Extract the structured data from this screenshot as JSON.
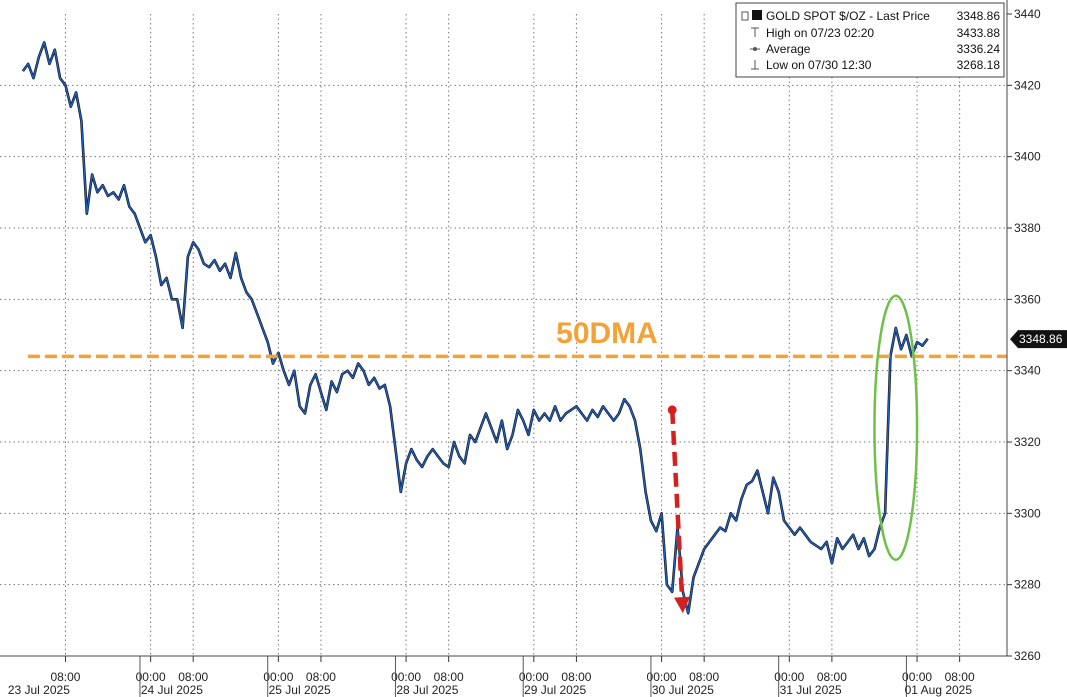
{
  "chart_data": {
    "type": "line",
    "title": "",
    "xlabel": "",
    "ylabel": "",
    "ylim": [
      3260,
      3440
    ],
    "y_ticks": [
      3260,
      3280,
      3300,
      3320,
      3340,
      3360,
      3380,
      3400,
      3420,
      3440
    ],
    "x_time_labels": [
      {
        "t": 8,
        "label": "08:00"
      },
      {
        "t": 24,
        "label": "00:00"
      },
      {
        "t": 32,
        "label": "08:00"
      },
      {
        "t": 48,
        "label": "00:00"
      },
      {
        "t": 56,
        "label": "08:00"
      },
      {
        "t": 72,
        "label": "00:00"
      },
      {
        "t": 80,
        "label": "08:00"
      },
      {
        "t": 96,
        "label": "00:00"
      },
      {
        "t": 104,
        "label": "08:00"
      },
      {
        "t": 120,
        "label": "00:00"
      },
      {
        "t": 128,
        "label": "08:00"
      },
      {
        "t": 144,
        "label": "00:00"
      },
      {
        "t": 152,
        "label": "08:00"
      },
      {
        "t": 168,
        "label": "00:00"
      },
      {
        "t": 176,
        "label": "08:00"
      }
    ],
    "x_date_labels": [
      {
        "t": 3,
        "label": "23 Jul 2025"
      },
      {
        "t": 28,
        "label": "24 Jul 2025"
      },
      {
        "t": 52,
        "label": "25 Jul 2025"
      },
      {
        "t": 76,
        "label": "28 Jul 2025"
      },
      {
        "t": 100,
        "label": "29 Jul 2025"
      },
      {
        "t": 124,
        "label": "30 Jul 2025"
      },
      {
        "t": 148,
        "label": "31 Jul 2025"
      },
      {
        "t": 172,
        "label": "01 Aug 2025"
      }
    ],
    "series": [
      {
        "name": "GOLD SPOT $/OZ - Last Price",
        "color": "#1f5fbf",
        "points": [
          [
            0,
            3424
          ],
          [
            1,
            3426
          ],
          [
            2,
            3422
          ],
          [
            3,
            3428
          ],
          [
            4,
            3432
          ],
          [
            5,
            3426
          ],
          [
            6,
            3430
          ],
          [
            7,
            3422
          ],
          [
            8,
            3420
          ],
          [
            9,
            3414
          ],
          [
            10,
            3418
          ],
          [
            11,
            3410
          ],
          [
            12,
            3384
          ],
          [
            13,
            3395
          ],
          [
            14,
            3390
          ],
          [
            15,
            3392
          ],
          [
            16,
            3389
          ],
          [
            17,
            3390
          ],
          [
            18,
            3388
          ],
          [
            19,
            3392
          ],
          [
            20,
            3386
          ],
          [
            21,
            3384
          ],
          [
            22,
            3380
          ],
          [
            23,
            3376
          ],
          [
            24,
            3378
          ],
          [
            25,
            3372
          ],
          [
            26,
            3364
          ],
          [
            27,
            3366
          ],
          [
            28,
            3360
          ],
          [
            29,
            3360
          ],
          [
            30,
            3352
          ],
          [
            31,
            3372
          ],
          [
            32,
            3376
          ],
          [
            33,
            3374
          ],
          [
            34,
            3370
          ],
          [
            35,
            3369
          ],
          [
            36,
            3371
          ],
          [
            37,
            3368
          ],
          [
            38,
            3370
          ],
          [
            39,
            3366
          ],
          [
            40,
            3373
          ],
          [
            41,
            3366
          ],
          [
            42,
            3362
          ],
          [
            43,
            3360
          ],
          [
            44,
            3356
          ],
          [
            45,
            3352
          ],
          [
            46,
            3348
          ],
          [
            47,
            3342
          ],
          [
            48,
            3345
          ],
          [
            49,
            3340
          ],
          [
            50,
            3336
          ],
          [
            51,
            3340
          ],
          [
            52,
            3330
          ],
          [
            53,
            3328
          ],
          [
            54,
            3336
          ],
          [
            55,
            3339
          ],
          [
            56,
            3334
          ],
          [
            57,
            3329
          ],
          [
            58,
            3337
          ],
          [
            59,
            3334
          ],
          [
            60,
            3339
          ],
          [
            61,
            3340
          ],
          [
            62,
            3338
          ],
          [
            63,
            3342
          ],
          [
            64,
            3340
          ],
          [
            65,
            3336
          ],
          [
            66,
            3338
          ],
          [
            67,
            3335
          ],
          [
            68,
            3336
          ],
          [
            69,
            3330
          ],
          [
            70,
            3318
          ],
          [
            71,
            3306
          ],
          [
            72,
            3314
          ],
          [
            73,
            3318
          ],
          [
            74,
            3315
          ],
          [
            75,
            3313
          ],
          [
            76,
            3316
          ],
          [
            77,
            3318
          ],
          [
            78,
            3316
          ],
          [
            79,
            3314
          ],
          [
            80,
            3313
          ],
          [
            81,
            3320
          ],
          [
            82,
            3316
          ],
          [
            83,
            3314
          ],
          [
            84,
            3322
          ],
          [
            85,
            3320
          ],
          [
            86,
            3324
          ],
          [
            87,
            3328
          ],
          [
            88,
            3324
          ],
          [
            89,
            3320
          ],
          [
            90,
            3326
          ],
          [
            91,
            3318
          ],
          [
            92,
            3322
          ],
          [
            93,
            3329
          ],
          [
            94,
            3326
          ],
          [
            95,
            3322
          ],
          [
            96,
            3329
          ],
          [
            97,
            3326
          ],
          [
            98,
            3328
          ],
          [
            99,
            3326
          ],
          [
            100,
            3330
          ],
          [
            101,
            3326
          ],
          [
            102,
            3328
          ],
          [
            103,
            3329
          ],
          [
            104,
            3330
          ],
          [
            105,
            3328
          ],
          [
            106,
            3326
          ],
          [
            107,
            3329
          ],
          [
            108,
            3327
          ],
          [
            109,
            3330
          ],
          [
            110,
            3328
          ],
          [
            111,
            3326
          ],
          [
            112,
            3328
          ],
          [
            113,
            3332
          ],
          [
            114,
            3330
          ],
          [
            115,
            3326
          ],
          [
            116,
            3318
          ],
          [
            117,
            3306
          ],
          [
            118,
            3298
          ],
          [
            119,
            3295
          ],
          [
            120,
            3300
          ],
          [
            121,
            3280
          ],
          [
            122,
            3278
          ],
          [
            123,
            3296
          ],
          [
            124,
            3278
          ],
          [
            125,
            3272
          ],
          [
            126,
            3282
          ],
          [
            127,
            3286
          ],
          [
            128,
            3290
          ],
          [
            129,
            3292
          ],
          [
            130,
            3294
          ],
          [
            131,
            3296
          ],
          [
            132,
            3295
          ],
          [
            133,
            3300
          ],
          [
            134,
            3298
          ],
          [
            135,
            3304
          ],
          [
            136,
            3308
          ],
          [
            137,
            3309
          ],
          [
            138,
            3312
          ],
          [
            139,
            3306
          ],
          [
            140,
            3300
          ],
          [
            141,
            3310
          ],
          [
            142,
            3306
          ],
          [
            143,
            3298
          ],
          [
            144,
            3296
          ],
          [
            145,
            3294
          ],
          [
            146,
            3296
          ],
          [
            147,
            3294
          ],
          [
            148,
            3292
          ],
          [
            149,
            3291
          ],
          [
            150,
            3290
          ],
          [
            151,
            3292
          ],
          [
            152,
            3286
          ],
          [
            153,
            3293
          ],
          [
            154,
            3290
          ],
          [
            155,
            3292
          ],
          [
            156,
            3294
          ],
          [
            157,
            3290
          ],
          [
            158,
            3293
          ],
          [
            159,
            3288
          ],
          [
            160,
            3290
          ],
          [
            161,
            3296
          ],
          [
            162,
            3300
          ],
          [
            163,
            3344
          ],
          [
            164,
            3352
          ],
          [
            165,
            3346
          ],
          [
            166,
            3350
          ],
          [
            167,
            3344
          ],
          [
            168,
            3348
          ],
          [
            169,
            3347
          ],
          [
            170,
            3349
          ]
        ]
      }
    ],
    "legend": {
      "placement": "top-right",
      "rows": [
        {
          "label": "GOLD SPOT $/OZ - Last Price",
          "value": "3348.86"
        },
        {
          "label": "High on 07/23 02:20",
          "value": "3433.88"
        },
        {
          "label": "Average",
          "value": "3336.24"
        },
        {
          "label": "Low on 07/30 12:30",
          "value": "3268.18"
        }
      ]
    },
    "last_price_label": "3348.86",
    "last_price": 3348.86,
    "annotations": [
      {
        "type": "hline",
        "label": "50DMA",
        "y": 3344,
        "color": "#f4a235"
      },
      {
        "type": "arrow",
        "from": [
          122,
          3329
        ],
        "to": [
          124,
          3272
        ],
        "color": "#d42020"
      },
      {
        "type": "ellipse",
        "center": [
          164,
          3324
        ],
        "rx": 4,
        "ry": 37,
        "color": "#6ec048"
      }
    ],
    "grid": true
  }
}
